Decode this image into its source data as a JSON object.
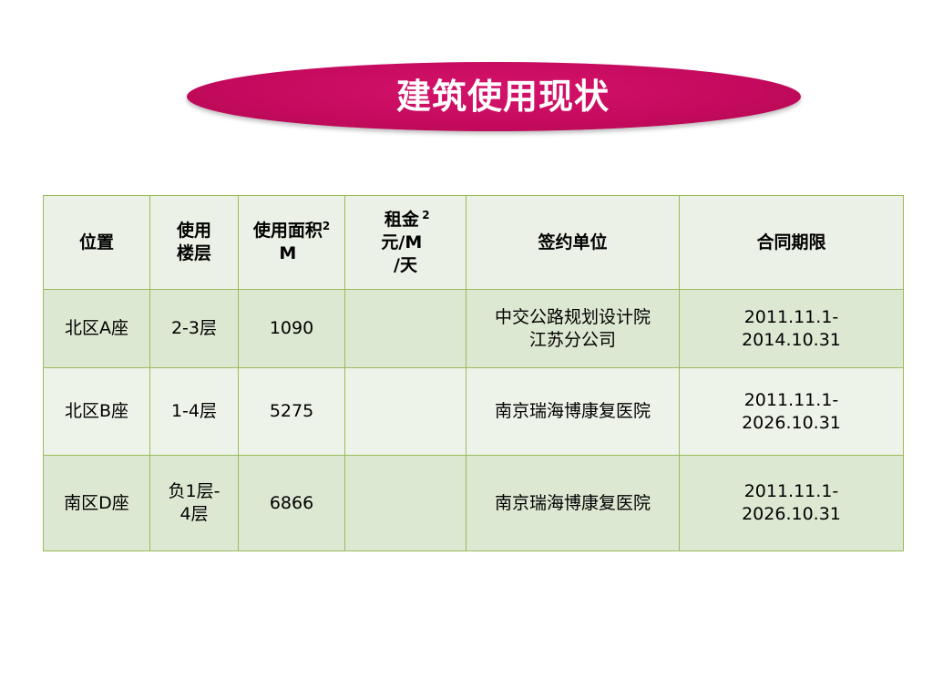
{
  "title": "建筑使用现状",
  "colors": {
    "banner": "#c40a5e",
    "table_border": "#9bbb59",
    "header_bg": "#ebf1e6",
    "row_dark": "#dde8d2",
    "row_light": "#eef3ea"
  },
  "table": {
    "headers": {
      "location": "位置",
      "floors": "使用\n楼层",
      "area_label": "使用面积\nM",
      "area_sup": "2",
      "rent_line1": "租金\n元/M",
      "rent_sup": "2",
      "rent_line2": "/天",
      "tenant": "签约单位",
      "term": "合同期限"
    },
    "rows": [
      {
        "location": "北区A座",
        "floors": "2-3层",
        "area": "1090",
        "rent": "",
        "tenant": "中交公路规划设计院\n江苏分公司",
        "term": "2011.11.1-\n2014.10.31"
      },
      {
        "location": "北区B座",
        "floors": "1-4层",
        "area": "5275",
        "rent": "",
        "tenant": "南京瑞海博康复医院",
        "term": "2011.11.1-\n2026.10.31"
      },
      {
        "location": "南区D座",
        "floors": "负1层-\n4层",
        "area": "6866",
        "rent": "",
        "tenant": "南京瑞海博康复医院",
        "term": "2011.11.1-\n2026.10.31"
      }
    ]
  }
}
